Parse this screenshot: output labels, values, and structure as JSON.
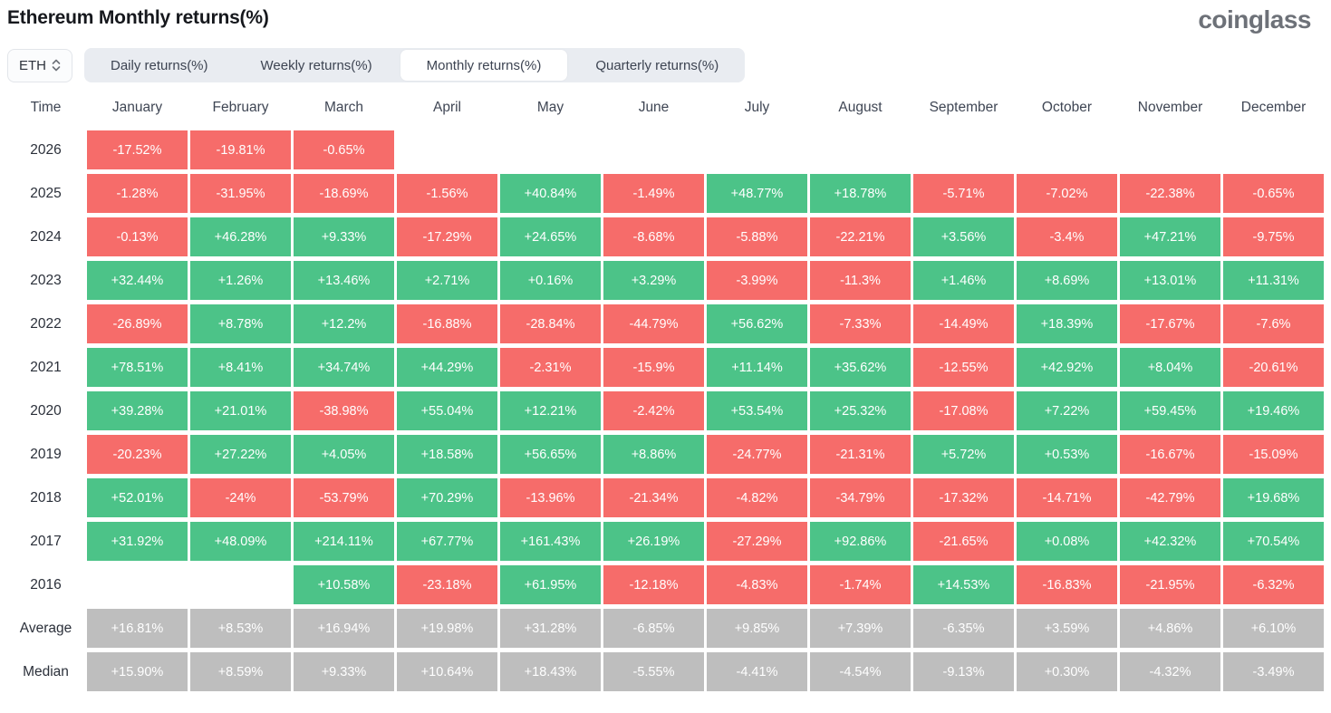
{
  "header": {
    "title": "Ethereum Monthly returns(%)",
    "logo": "coinglass"
  },
  "toolbar": {
    "coin": "ETH",
    "tabs": [
      {
        "label": "Daily returns(%)",
        "active": false
      },
      {
        "label": "Weekly returns(%)",
        "active": false
      },
      {
        "label": "Monthly returns(%)",
        "active": true
      },
      {
        "label": "Quarterly returns(%)",
        "active": false
      }
    ]
  },
  "colors": {
    "positive": "#4cc388",
    "negative": "#f66c6a",
    "summary": "#bebebe"
  },
  "chart_data": {
    "type": "heatmap",
    "title": "Ethereum Monthly returns(%)",
    "time_header": "Time",
    "months": [
      "January",
      "February",
      "March",
      "April",
      "May",
      "June",
      "July",
      "August",
      "September",
      "October",
      "November",
      "December"
    ],
    "rows": [
      {
        "label": "2026",
        "type": "year",
        "values": [
          "-17.52%",
          "-19.81%",
          "-0.65%",
          null,
          null,
          null,
          null,
          null,
          null,
          null,
          null,
          null
        ]
      },
      {
        "label": "2025",
        "type": "year",
        "values": [
          "-1.28%",
          "-31.95%",
          "-18.69%",
          "-1.56%",
          "+40.84%",
          "-1.49%",
          "+48.77%",
          "+18.78%",
          "-5.71%",
          "-7.02%",
          "-22.38%",
          "-0.65%"
        ]
      },
      {
        "label": "2024",
        "type": "year",
        "values": [
          "-0.13%",
          "+46.28%",
          "+9.33%",
          "-17.29%",
          "+24.65%",
          "-8.68%",
          "-5.88%",
          "-22.21%",
          "+3.56%",
          "-3.4%",
          "+47.21%",
          "-9.75%"
        ]
      },
      {
        "label": "2023",
        "type": "year",
        "values": [
          "+32.44%",
          "+1.26%",
          "+13.46%",
          "+2.71%",
          "+0.16%",
          "+3.29%",
          "-3.99%",
          "-11.3%",
          "+1.46%",
          "+8.69%",
          "+13.01%",
          "+11.31%"
        ]
      },
      {
        "label": "2022",
        "type": "year",
        "values": [
          "-26.89%",
          "+8.78%",
          "+12.2%",
          "-16.88%",
          "-28.84%",
          "-44.79%",
          "+56.62%",
          "-7.33%",
          "-14.49%",
          "+18.39%",
          "-17.67%",
          "-7.6%"
        ]
      },
      {
        "label": "2021",
        "type": "year",
        "values": [
          "+78.51%",
          "+8.41%",
          "+34.74%",
          "+44.29%",
          "-2.31%",
          "-15.9%",
          "+11.14%",
          "+35.62%",
          "-12.55%",
          "+42.92%",
          "+8.04%",
          "-20.61%"
        ]
      },
      {
        "label": "2020",
        "type": "year",
        "values": [
          "+39.28%",
          "+21.01%",
          "-38.98%",
          "+55.04%",
          "+12.21%",
          "-2.42%",
          "+53.54%",
          "+25.32%",
          "-17.08%",
          "+7.22%",
          "+59.45%",
          "+19.46%"
        ]
      },
      {
        "label": "2019",
        "type": "year",
        "values": [
          "-20.23%",
          "+27.22%",
          "+4.05%",
          "+18.58%",
          "+56.65%",
          "+8.86%",
          "-24.77%",
          "-21.31%",
          "+5.72%",
          "+0.53%",
          "-16.67%",
          "-15.09%"
        ]
      },
      {
        "label": "2018",
        "type": "year",
        "values": [
          "+52.01%",
          "-24%",
          "-53.79%",
          "+70.29%",
          "-13.96%",
          "-21.34%",
          "-4.82%",
          "-34.79%",
          "-17.32%",
          "-14.71%",
          "-42.79%",
          "+19.68%"
        ]
      },
      {
        "label": "2017",
        "type": "year",
        "values": [
          "+31.92%",
          "+48.09%",
          "+214.11%",
          "+67.77%",
          "+161.43%",
          "+26.19%",
          "-27.29%",
          "+92.86%",
          "-21.65%",
          "+0.08%",
          "+42.32%",
          "+70.54%"
        ]
      },
      {
        "label": "2016",
        "type": "year",
        "values": [
          null,
          null,
          "+10.58%",
          "-23.18%",
          "+61.95%",
          "-12.18%",
          "-4.83%",
          "-1.74%",
          "+14.53%",
          "-16.83%",
          "-21.95%",
          "-6.32%"
        ]
      },
      {
        "label": "Average",
        "type": "summary",
        "values": [
          "+16.81%",
          "+8.53%",
          "+16.94%",
          "+19.98%",
          "+31.28%",
          "-6.85%",
          "+9.85%",
          "+7.39%",
          "-6.35%",
          "+3.59%",
          "+4.86%",
          "+6.10%"
        ]
      },
      {
        "label": "Median",
        "type": "summary",
        "values": [
          "+15.90%",
          "+8.59%",
          "+9.33%",
          "+10.64%",
          "+18.43%",
          "-5.55%",
          "-4.41%",
          "-4.54%",
          "-9.13%",
          "+0.30%",
          "-4.32%",
          "-3.49%"
        ]
      }
    ]
  }
}
